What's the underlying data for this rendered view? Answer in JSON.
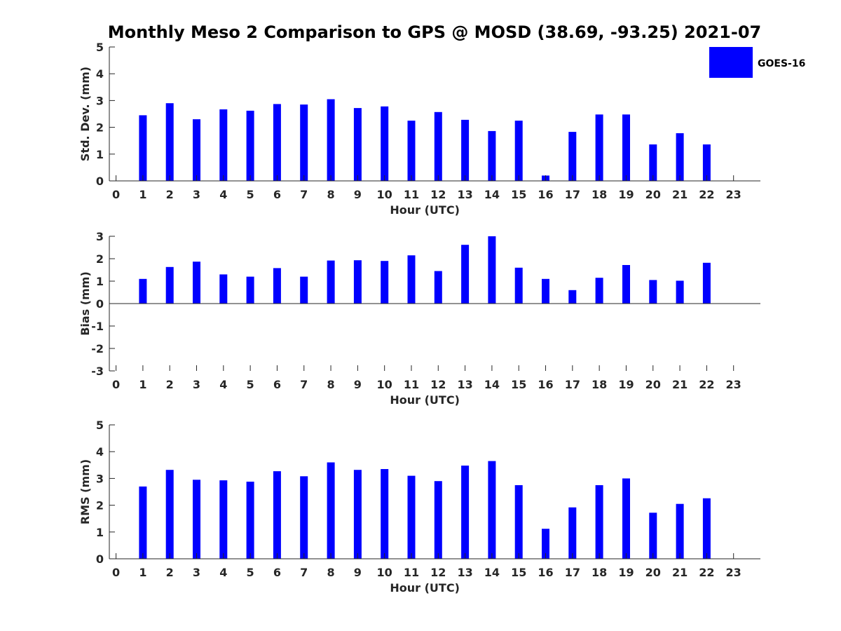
{
  "title": "Monthly Meso 2 Comparison to GPS @ MOSD (38.69, -93.25) 2021-07",
  "legend": {
    "label": "GOES-16",
    "color": "#0000ff",
    "placement": "top-right"
  },
  "chart_data": [
    {
      "type": "bar",
      "name": "std",
      "x": [
        0,
        1,
        2,
        3,
        4,
        5,
        6,
        7,
        8,
        9,
        10,
        11,
        12,
        13,
        14,
        15,
        16,
        17,
        18,
        19,
        20,
        21,
        22,
        23
      ],
      "values": [
        null,
        2.45,
        2.9,
        2.3,
        2.67,
        2.62,
        2.87,
        2.85,
        3.05,
        2.72,
        2.78,
        2.25,
        2.57,
        2.28,
        1.86,
        2.25,
        0.2,
        1.83,
        2.48,
        2.48,
        1.36,
        1.78,
        1.36,
        null
      ],
      "xlabel": "Hour (UTC)",
      "ylabel": "Std. Dev. (mm)",
      "xlim": [
        -0.25,
        24
      ],
      "ylim": [
        0,
        5
      ],
      "yticks": [
        0,
        1,
        2,
        3,
        4,
        5
      ],
      "color": "#0000ff",
      "grid": false
    },
    {
      "type": "bar",
      "name": "bias",
      "x": [
        0,
        1,
        2,
        3,
        4,
        5,
        6,
        7,
        8,
        9,
        10,
        11,
        12,
        13,
        14,
        15,
        16,
        17,
        18,
        19,
        20,
        21,
        22,
        23
      ],
      "values": [
        null,
        1.1,
        1.63,
        1.87,
        1.3,
        1.2,
        1.58,
        1.2,
        1.92,
        1.93,
        1.9,
        2.15,
        1.45,
        2.62,
        3.0,
        1.6,
        1.1,
        0.6,
        1.15,
        1.72,
        1.05,
        1.02,
        1.82,
        null
      ],
      "xlabel": "Hour (UTC)",
      "ylabel": "Bias (mm)",
      "xlim": [
        -0.25,
        24
      ],
      "ylim": [
        -3,
        3
      ],
      "yticks": [
        -3,
        -2,
        -1,
        0,
        1,
        2,
        3
      ],
      "color": "#0000ff",
      "grid": false
    },
    {
      "type": "bar",
      "name": "rms",
      "x": [
        0,
        1,
        2,
        3,
        4,
        5,
        6,
        7,
        8,
        9,
        10,
        11,
        12,
        13,
        14,
        15,
        16,
        17,
        18,
        19,
        20,
        21,
        22,
        23
      ],
      "values": [
        null,
        2.7,
        3.32,
        2.95,
        2.93,
        2.88,
        3.27,
        3.08,
        3.6,
        3.32,
        3.35,
        3.1,
        2.9,
        3.48,
        3.65,
        2.75,
        1.12,
        1.92,
        2.75,
        3.0,
        1.72,
        2.05,
        2.26,
        null
      ],
      "xlabel": "Hour (UTC)",
      "ylabel": "RMS (mm)",
      "xlim": [
        -0.25,
        24
      ],
      "ylim": [
        0,
        5
      ],
      "yticks": [
        0,
        1,
        2,
        3,
        4,
        5
      ],
      "color": "#0000ff",
      "grid": false
    }
  ]
}
